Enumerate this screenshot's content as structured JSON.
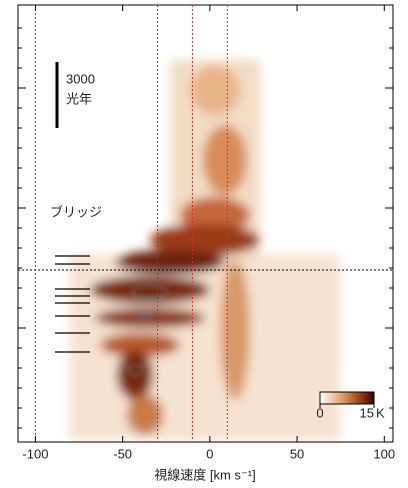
{
  "chart_data": {
    "type": "pv-map",
    "xlabel": "視線速度 [km s⁻¹]",
    "xlim": [
      -110,
      105
    ],
    "xticks": [
      -100,
      -50,
      0,
      50,
      100
    ],
    "reference_lines": [
      {
        "x": -100,
        "color": "#3355cc"
      },
      {
        "x": -30,
        "color": "#3355cc"
      },
      {
        "x": -10,
        "color": "#cc3333"
      },
      {
        "x": 10,
        "color": "#cc3333"
      }
    ],
    "scale_bar": {
      "value": 3000,
      "unit": "光年"
    },
    "annotation": "ブリッジ",
    "colorbar": {
      "ticks": [
        0,
        15
      ],
      "unit": "K"
    }
  }
}
